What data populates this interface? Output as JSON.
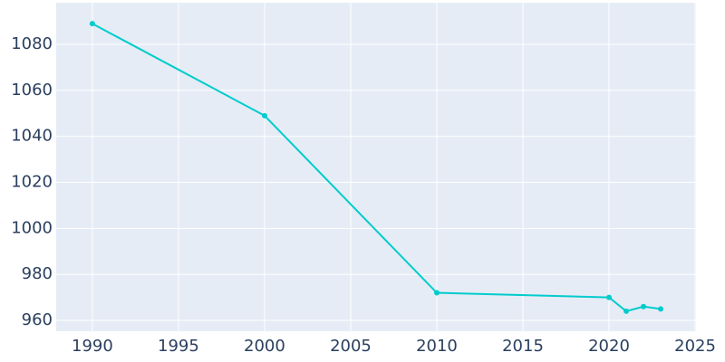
{
  "chart_data": {
    "type": "line",
    "x": [
      1990,
      2000,
      2010,
      2020,
      2021,
      2022,
      2023
    ],
    "series": [
      {
        "color": "#00cccc",
        "values": [
          1089,
          1049,
          972,
          970,
          964,
          966,
          965
        ]
      }
    ],
    "xlim": [
      1987.9,
      2025.05
    ],
    "xticks": [
      1990,
      1995,
      2000,
      2005,
      2010,
      2015,
      2020,
      2025
    ],
    "ylim": [
      955.3,
      1098.1
    ],
    "yticks": [
      960,
      980,
      1000,
      1020,
      1040,
      1060,
      1080
    ],
    "grid": true
  }
}
